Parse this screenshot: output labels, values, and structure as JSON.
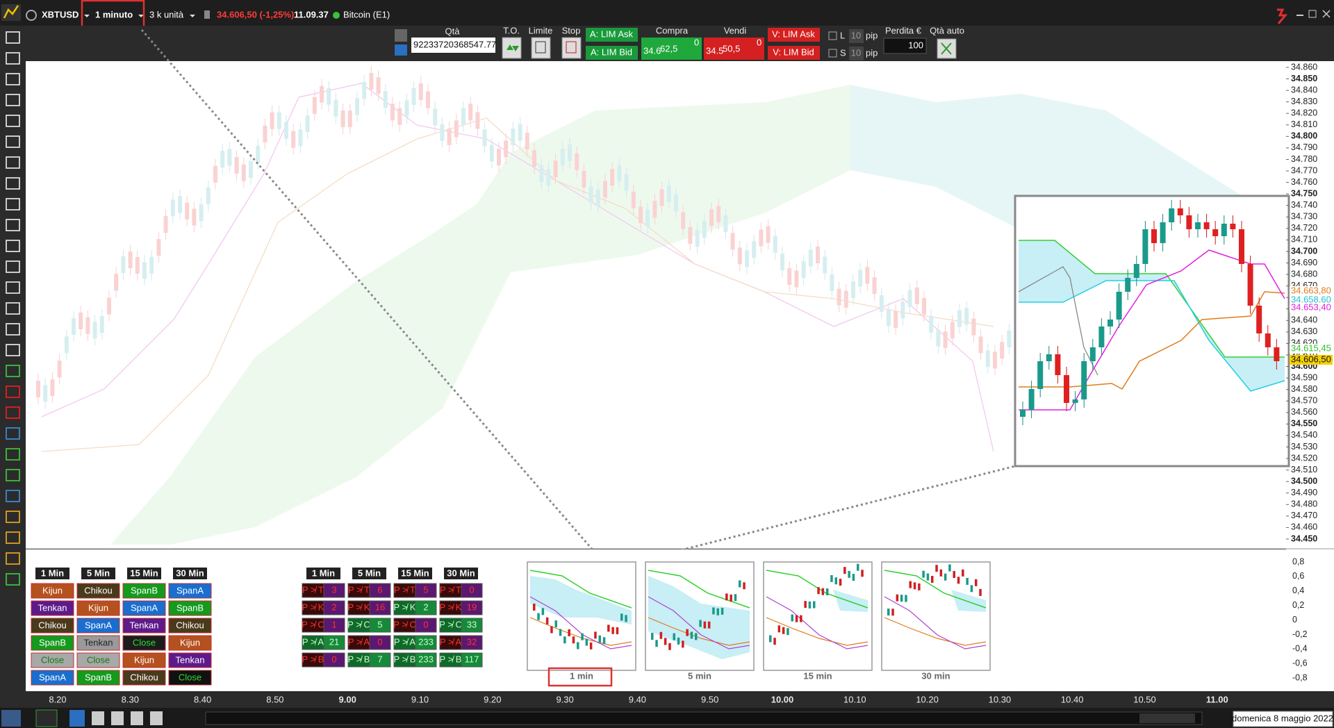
{
  "toolbar": {
    "symbol": "XBTUSD",
    "timeframe": "1 minuto",
    "units": "3 k unità",
    "price_change": "34.606,50 (-1,25%)",
    "time": "11.09.37",
    "instrument": "Bitcoin (E1)"
  },
  "order_panel": {
    "qty_label": "Qtà",
    "qty": "92233720368547.77",
    "to_label": "T.O.",
    "limit_label": "Limite",
    "stop_label": "Stop",
    "buy_lim_ask": "A: LIM Ask",
    "buy_lim_bid": "A: LIM Bid",
    "buy_label": "Compra",
    "buy_price_prefix": "34.6",
    "buy_price_main": "62,5",
    "buy_price_sup": "0",
    "sell_label": "Vendi",
    "sell_price_prefix": "34.5",
    "sell_price_main": "50,5",
    "sell_price_sup": "0",
    "sell_lim_ask": "V: LIM Ask",
    "sell_lim_bid": "V: LIM Bid",
    "long_label": "L",
    "long_pips": "10",
    "long_pip_label": "pip",
    "short_label": "S",
    "short_pips": "10",
    "short_pip_label": "pip",
    "loss_label": "Perdita €",
    "loss_value": "100",
    "auto_qty_label": "Qtà auto"
  },
  "price_axis": {
    "labels": [
      "34.860",
      "34.850",
      "34.840",
      "34.830",
      "34.820",
      "34.810",
      "34.800",
      "34.790",
      "34.780",
      "34.770",
      "34.760",
      "34.750",
      "34.740",
      "34.730",
      "34.720",
      "34.710",
      "34.700",
      "34.690",
      "34.680",
      "34.670",
      "34.660",
      "34.650",
      "34.640",
      "34.630",
      "34.620",
      "34.610",
      "34.600",
      "34.590",
      "34.580",
      "34.570",
      "34.560",
      "34.550",
      "34.540",
      "34.530",
      "34.520",
      "34.510",
      "34.500",
      "34.490",
      "34.480",
      "34.470",
      "34.460",
      "34.450"
    ],
    "tags": [
      {
        "text": "34.663,80",
        "color": "#e07b1a",
        "bg": "#ffffff"
      },
      {
        "text": "34.658,60",
        "color": "#22c0d0",
        "bg": "#ffffff"
      },
      {
        "text": "34.653,40",
        "color": "#e020e0",
        "bg": "#ffffff"
      },
      {
        "text": "34.615,45",
        "color": "#30c030",
        "bg": "#ffffff"
      },
      {
        "text": "34.606,50",
        "color": "#111111",
        "bg": "#f5d000"
      }
    ]
  },
  "indicator_axis": {
    "labels": [
      "0,8",
      "0,6",
      "0,4",
      "0,2",
      "0",
      "-0,2",
      "-0,4",
      "-0,6",
      "-0,8"
    ]
  },
  "time_axis": {
    "labels": [
      "8.20",
      "8.30",
      "8.40",
      "8.50",
      "9.00",
      "9.10",
      "9.20",
      "9.30",
      "9.40",
      "9.50",
      "10.00",
      "10.10",
      "10.20",
      "10.30",
      "10.40",
      "10.50",
      "11.00"
    ]
  },
  "signal_table": {
    "headers": [
      "1 Min",
      "5 Min",
      "15 Min",
      "30 Min"
    ],
    "rows": [
      [
        {
          "text": "Kijun",
          "bg": "#b5511e",
          "fg": "#ffffff"
        },
        {
          "text": "Chikou",
          "bg": "#4a3a1c",
          "fg": "#ffffff"
        },
        {
          "text": "SpanB",
          "bg": "#149a1c",
          "fg": "#ffffff"
        },
        {
          "text": "SpanA",
          "bg": "#1a6ecf",
          "fg": "#ffffff"
        }
      ],
      [
        {
          "text": "Tenkan",
          "bg": "#5e1a8a",
          "fg": "#ffffff"
        },
        {
          "text": "Kijun",
          "bg": "#b5511e",
          "fg": "#ffffff"
        },
        {
          "text": "SpanA",
          "bg": "#1a6ecf",
          "fg": "#ffffff"
        },
        {
          "text": "SpanB",
          "bg": "#149a1c",
          "fg": "#ffffff"
        }
      ],
      [
        {
          "text": "Chikou",
          "bg": "#4a3a1c",
          "fg": "#ffffff"
        },
        {
          "text": "SpanA",
          "bg": "#1a6ecf",
          "fg": "#ffffff"
        },
        {
          "text": "Tenkan",
          "bg": "#5e1a8a",
          "fg": "#ffffff"
        },
        {
          "text": "Chikou",
          "bg": "#4a3a1c",
          "fg": "#ffffff"
        }
      ],
      [
        {
          "text": "SpanB",
          "bg": "#149a1c",
          "fg": "#ffffff"
        },
        {
          "text": "Tenkan",
          "bg": "#9a9a9a",
          "fg": "#222222"
        },
        {
          "text": "Close",
          "bg": "#1c1c1c",
          "fg": "#2fdc2f"
        },
        {
          "text": "Kijun",
          "bg": "#b5511e",
          "fg": "#ffffff"
        }
      ],
      [
        {
          "text": "Close",
          "bg": "#a8a8a8",
          "fg": "#137a13"
        },
        {
          "text": "Close",
          "bg": "#a8a8a8",
          "fg": "#137a13"
        },
        {
          "text": "Kijun",
          "bg": "#b5511e",
          "fg": "#ffffff"
        },
        {
          "text": "Tenkan",
          "bg": "#5e1a8a",
          "fg": "#ffffff"
        }
      ],
      [
        {
          "text": "SpanA",
          "bg": "#1a6ecf",
          "fg": "#ffffff"
        },
        {
          "text": "SpanB",
          "bg": "#149a1c",
          "fg": "#ffffff"
        },
        {
          "text": "Chikou",
          "bg": "#4a3a1c",
          "fg": "#ffffff"
        },
        {
          "text": "Close",
          "bg": "#111111",
          "fg": "#2fdc2f"
        }
      ]
    ]
  },
  "distance_table": {
    "headers": [
      "1 Min",
      "5 Min",
      "15 Min",
      "30 Min"
    ],
    "rows": [
      [
        {
          "label": "P ≯ T",
          "value": "3",
          "label_bg": "#3a0a0a",
          "value_bg": "#5a1870",
          "fg": "#ff3030"
        },
        {
          "label": "P ≯ T",
          "value": "6",
          "label_bg": "#3a0a0a",
          "value_bg": "#5a1870",
          "fg": "#ff3030"
        },
        {
          "label": "P ≯ T",
          "value": "5",
          "label_bg": "#3a0a0a",
          "value_bg": "#5a1870",
          "fg": "#ff3030"
        },
        {
          "label": "P ≯ T",
          "value": "0",
          "label_bg": "#3a0a0a",
          "value_bg": "#5a1870",
          "fg": "#ff3030"
        }
      ],
      [
        {
          "label": "P ≯ K",
          "value": "2",
          "label_bg": "#3a0a0a",
          "value_bg": "#5a1870",
          "fg": "#ff3030"
        },
        {
          "label": "P ≯ K",
          "value": "16",
          "label_bg": "#3a0a0a",
          "value_bg": "#5a1870",
          "fg": "#ff3030"
        },
        {
          "label": "P ≯ K",
          "value": "2",
          "label_bg": "#0f6a2a",
          "value_bg": "#168a3a",
          "fg": "#c8ffc8"
        },
        {
          "label": "P ≯ K",
          "value": "19",
          "label_bg": "#3a0a0a",
          "value_bg": "#5a1870",
          "fg": "#ff3030"
        }
      ],
      [
        {
          "label": "P ≯ C",
          "value": "1",
          "label_bg": "#3a0a0a",
          "value_bg": "#5a1870",
          "fg": "#ff3030"
        },
        {
          "label": "P ≯ C",
          "value": "5",
          "label_bg": "#0f6a2a",
          "value_bg": "#168a3a",
          "fg": "#c8ffc8"
        },
        {
          "label": "P ≯ C",
          "value": "0",
          "label_bg": "#3a0a0a",
          "value_bg": "#5a1870",
          "fg": "#ff3030"
        },
        {
          "label": "P ≯ C",
          "value": "33",
          "label_bg": "#0f6a2a",
          "value_bg": "#168a3a",
          "fg": "#c8ffc8"
        }
      ],
      [
        {
          "label": "P ≯ A",
          "value": "21",
          "label_bg": "#0f6a2a",
          "value_bg": "#168a3a",
          "fg": "#c8ffc8"
        },
        {
          "label": "P ≯ A",
          "value": "0",
          "label_bg": "#3a0a0a",
          "value_bg": "#5a1870",
          "fg": "#ff3030"
        },
        {
          "label": "P ≯ A",
          "value": "233",
          "label_bg": "#0f6a2a",
          "value_bg": "#168a3a",
          "fg": "#c8ffc8"
        },
        {
          "label": "P ≯ A",
          "value": "32",
          "label_bg": "#3a0a0a",
          "value_bg": "#5a1870",
          "fg": "#ff3030"
        }
      ],
      [
        {
          "label": "P ≯ B",
          "value": "0",
          "label_bg": "#3a0a0a",
          "value_bg": "#5a1870",
          "fg": "#ff3030"
        },
        {
          "label": "P ≯ B",
          "value": "7",
          "label_bg": "#0f6a2a",
          "value_bg": "#168a3a",
          "fg": "#c8ffc8"
        },
        {
          "label": "P ≯ B",
          "value": "233",
          "label_bg": "#0f6a2a",
          "value_bg": "#168a3a",
          "fg": "#c8ffc8"
        },
        {
          "label": "P ≯ B",
          "value": "117",
          "label_bg": "#0f6a2a",
          "value_bg": "#168a3a",
          "fg": "#c8ffc8"
        }
      ]
    ]
  },
  "thumbnails": [
    "1 min",
    "5 min",
    "15 min",
    "30 min"
  ],
  "status": {
    "date": "domenica 8 maggio 2022"
  }
}
